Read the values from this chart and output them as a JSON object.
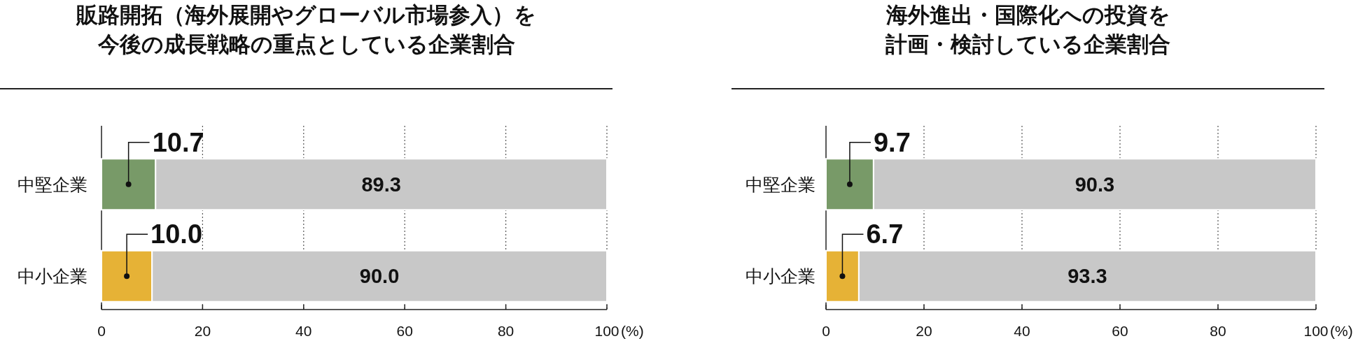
{
  "chart_data": [
    {
      "type": "bar",
      "orientation": "horizontal",
      "stacked": true,
      "title": "販路開拓（海外展開やグローバル市場参入）を今後の成長戦略の重点としている企業割合",
      "categories": [
        "中堅企業",
        "中小企業"
      ],
      "series": [
        {
          "colors": [
            "#789a68",
            "#e6b236"
          ],
          "values": [
            10.7,
            10.0
          ],
          "value_labels": [
            "10.7",
            "10.0"
          ]
        },
        {
          "color": "#c8c8c8",
          "values": [
            89.3,
            90.0
          ],
          "value_labels": [
            "89.3",
            "90.0"
          ]
        }
      ],
      "data_labels": true,
      "xlim": [
        0,
        100
      ],
      "xticks": [
        0,
        20,
        40,
        60,
        80,
        100
      ],
      "xlabel": "(%)",
      "grid": "x"
    },
    {
      "type": "bar",
      "orientation": "horizontal",
      "stacked": true,
      "title": "海外進出・国際化への投資を計画・検討している企業割合",
      "categories": [
        "中堅企業",
        "中小企業"
      ],
      "series": [
        {
          "colors": [
            "#789a68",
            "#e6b236"
          ],
          "values": [
            9.7,
            6.7
          ],
          "value_labels": [
            "9.7",
            "6.7"
          ]
        },
        {
          "color": "#c8c8c8",
          "values": [
            90.3,
            93.3
          ],
          "value_labels": [
            "90.3",
            "93.3"
          ]
        }
      ],
      "data_labels": true,
      "xlim": [
        0,
        100
      ],
      "xticks": [
        0,
        20,
        40,
        60,
        80,
        100
      ],
      "xlabel": "(%)",
      "grid": "x"
    }
  ]
}
